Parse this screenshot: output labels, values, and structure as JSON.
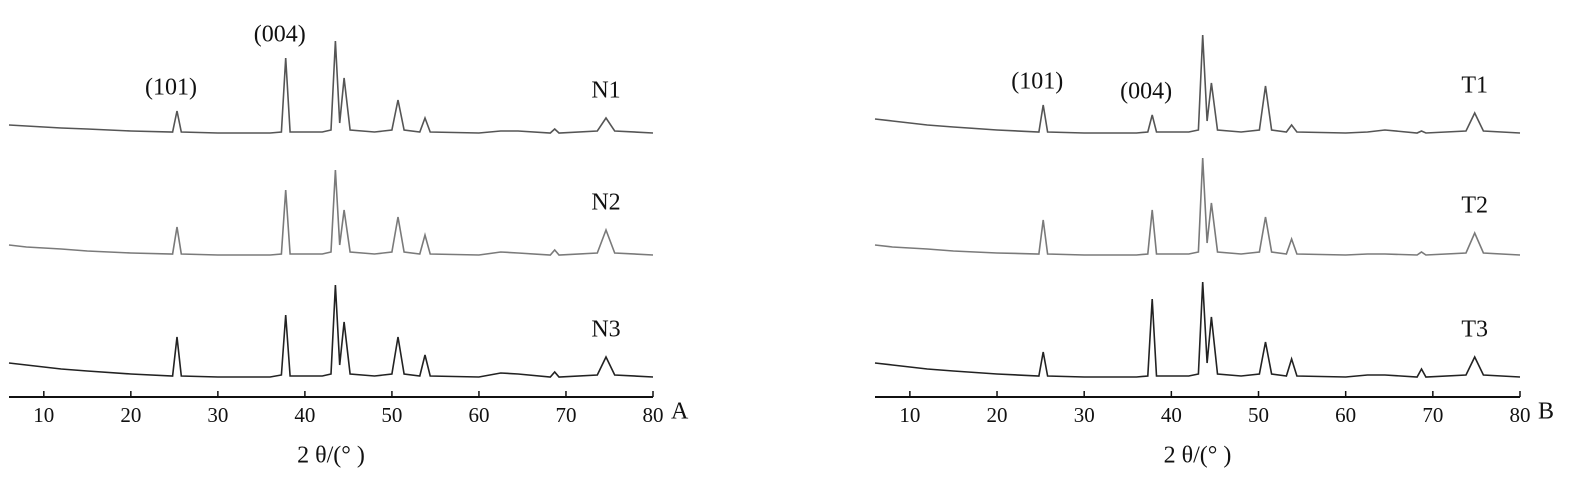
{
  "chart_data": [
    {
      "type": "line",
      "panel_label": "A",
      "x_label": "2 θ/(°  )",
      "xlim": [
        6,
        80
      ],
      "xticks": [
        10,
        20,
        30,
        40,
        50,
        60,
        70,
        80
      ],
      "x": [
        6,
        8,
        10,
        12,
        15,
        20,
        24.8,
        25.3,
        25.8,
        30,
        36,
        37.3,
        37.8,
        38.3,
        42,
        43,
        43.5,
        44,
        44.5,
        45.2,
        48,
        50,
        50.7,
        51.4,
        53.2,
        53.8,
        54.4,
        60,
        62.5,
        64.5,
        68.2,
        68.7,
        69.2,
        73.6,
        74.6,
        75.6,
        80
      ],
      "series": [
        {
          "name": "N1",
          "color": "#555555",
          "values": [
            8,
            7,
            6,
            5,
            4,
            2,
            1,
            22,
            1,
            0,
            0,
            1,
            75,
            1,
            1,
            3,
            92,
            10,
            55,
            3,
            1,
            3,
            33,
            3,
            1,
            15,
            1,
            0,
            2,
            2,
            0,
            4,
            0,
            2,
            15,
            2,
            0
          ]
        },
        {
          "name": "N2",
          "color": "#7a7a7a",
          "values": [
            10,
            8,
            7,
            6,
            4,
            2,
            1,
            28,
            1,
            0,
            0,
            1,
            65,
            1,
            1,
            3,
            85,
            10,
            45,
            3,
            1,
            3,
            38,
            3,
            1,
            20,
            1,
            0,
            3,
            2,
            0,
            5,
            0,
            2,
            25,
            2,
            0
          ]
        },
        {
          "name": "N3",
          "color": "#222222",
          "values": [
            14,
            12,
            10,
            8,
            6,
            3,
            1,
            40,
            1,
            0,
            0,
            2,
            62,
            1,
            1,
            3,
            92,
            12,
            55,
            3,
            1,
            3,
            40,
            3,
            1,
            22,
            1,
            0,
            4,
            3,
            0,
            5,
            0,
            2,
            20,
            2,
            0
          ]
        }
      ],
      "annotations": [
        {
          "text": "(101)",
          "x": 25.3
        },
        {
          "text": "(004)",
          "x": 37.8
        }
      ]
    },
    {
      "type": "line",
      "panel_label": "B",
      "x_label": "2 θ/(°  )",
      "xlim": [
        6,
        80
      ],
      "xticks": [
        10,
        20,
        30,
        40,
        50,
        60,
        70,
        80
      ],
      "x": [
        6,
        8,
        10,
        12,
        15,
        20,
        24.8,
        25.3,
        25.8,
        30,
        36,
        37.3,
        37.8,
        38.3,
        42,
        43.1,
        43.6,
        44.1,
        44.6,
        45.3,
        48,
        50.1,
        50.8,
        51.5,
        53.2,
        53.8,
        54.4,
        60,
        62.5,
        64.5,
        68.2,
        68.7,
        69.2,
        73.8,
        74.8,
        75.8,
        80
      ],
      "series": [
        {
          "name": "T1",
          "color": "#555555",
          "values": [
            14,
            12,
            10,
            8,
            6,
            3,
            1,
            28,
            1,
            0,
            0,
            1,
            18,
            1,
            1,
            3,
            98,
            12,
            50,
            3,
            1,
            3,
            47,
            3,
            1,
            8,
            1,
            0,
            1,
            3,
            0,
            2,
            0,
            2,
            20,
            2,
            0
          ]
        },
        {
          "name": "T2",
          "color": "#7a7a7a",
          "values": [
            10,
            8,
            7,
            6,
            4,
            2,
            1,
            35,
            1,
            0,
            0,
            1,
            45,
            1,
            1,
            3,
            97,
            12,
            52,
            3,
            1,
            3,
            38,
            3,
            1,
            16,
            1,
            0,
            1,
            1,
            0,
            3,
            0,
            2,
            22,
            2,
            0
          ]
        },
        {
          "name": "T3",
          "color": "#222222",
          "values": [
            14,
            12,
            10,
            8,
            6,
            3,
            1,
            25,
            1,
            0,
            0,
            1,
            78,
            1,
            1,
            3,
            95,
            14,
            60,
            3,
            1,
            3,
            35,
            3,
            1,
            18,
            1,
            0,
            2,
            2,
            0,
            8,
            0,
            2,
            20,
            2,
            0
          ]
        }
      ],
      "annotations": [
        {
          "text": "(101)",
          "x": 25.3
        },
        {
          "text": "(004)",
          "x": 37.8
        }
      ]
    }
  ]
}
